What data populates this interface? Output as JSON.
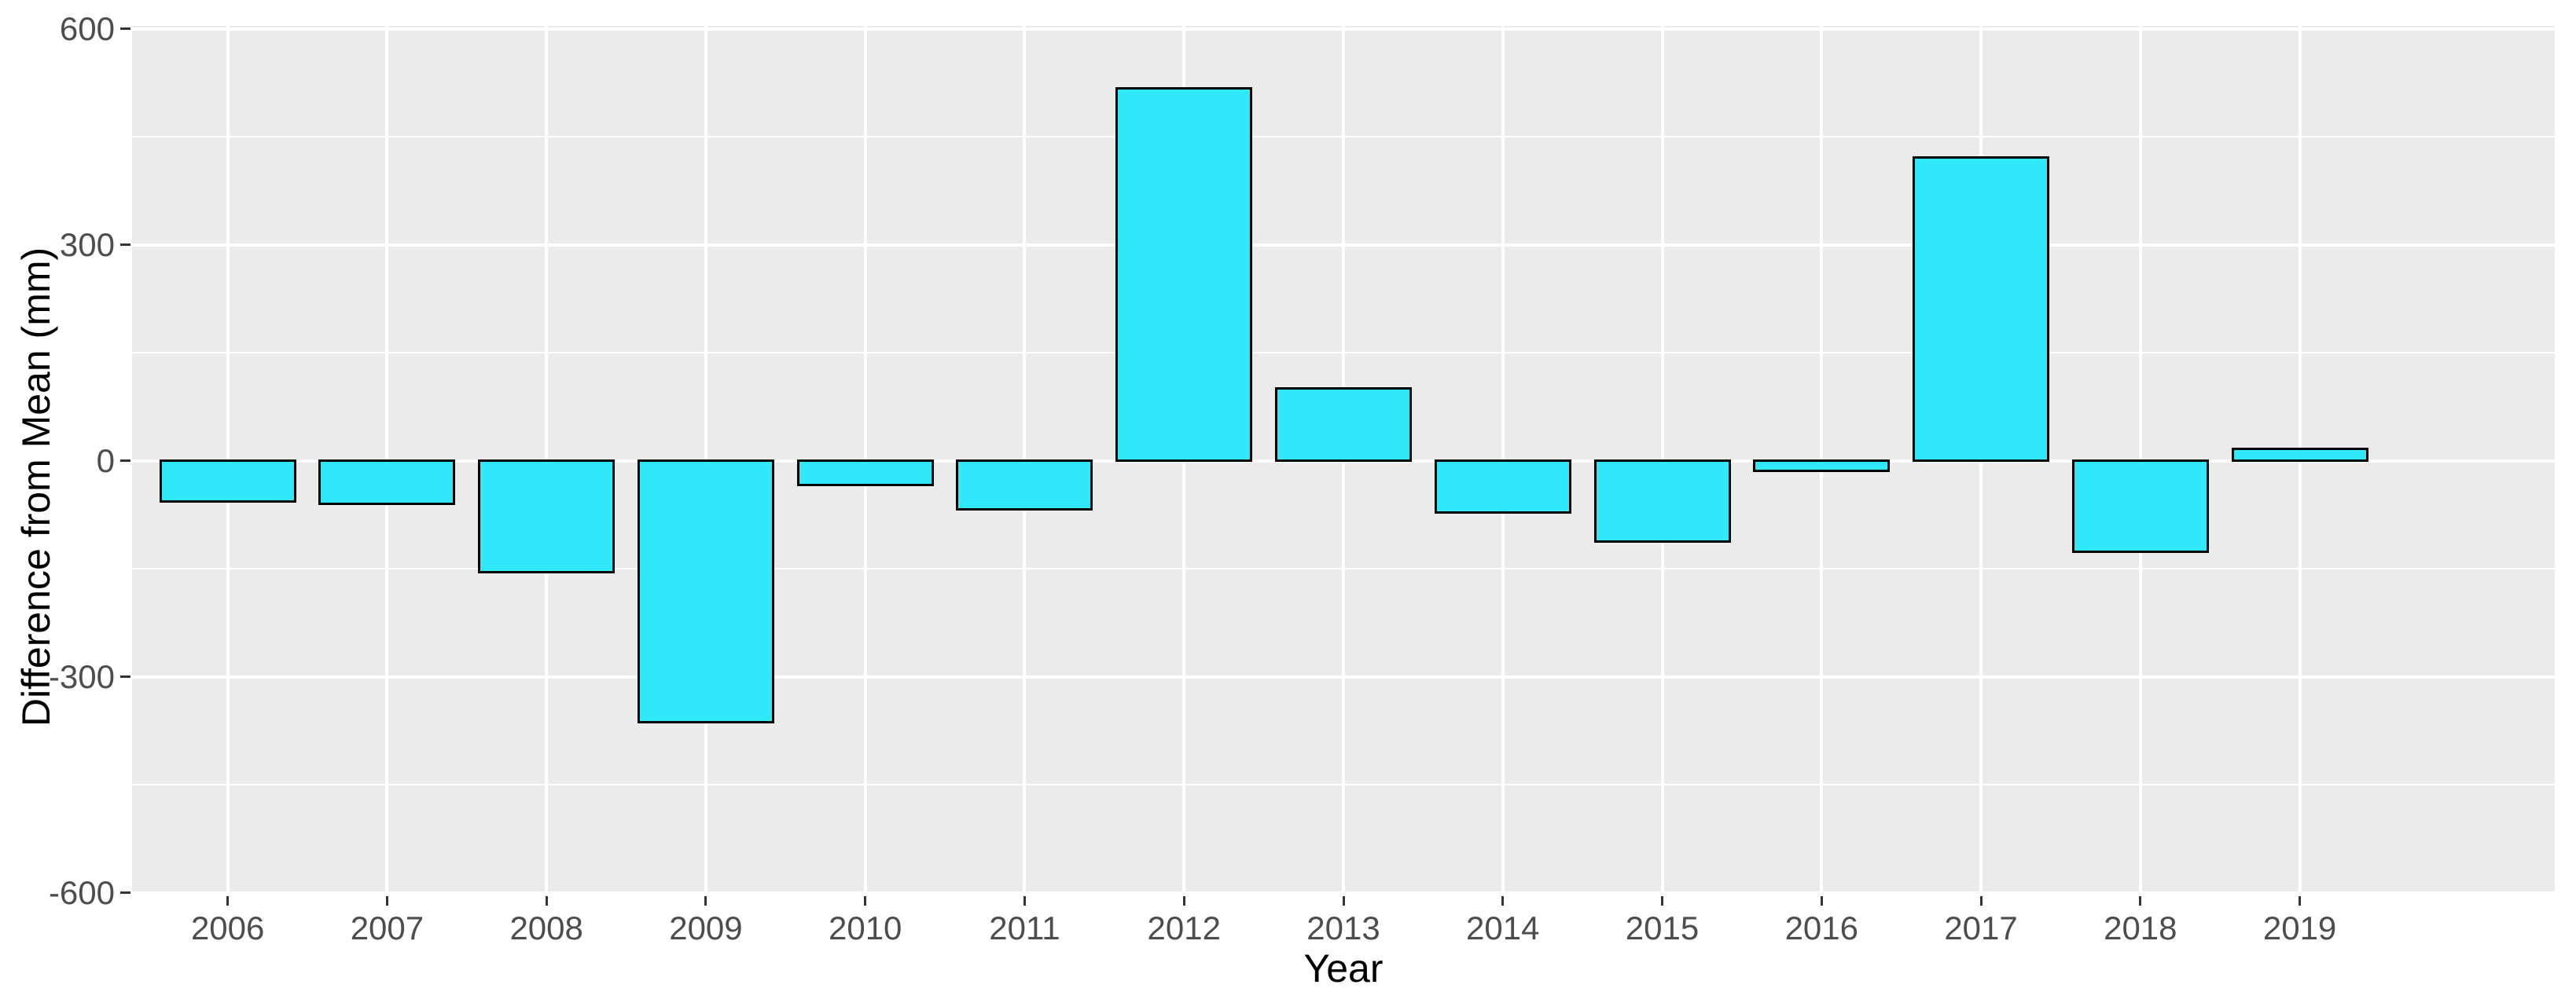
{
  "chart_data": {
    "type": "bar",
    "title": "",
    "xlabel": "Year",
    "ylabel": "Difference from Mean (mm)",
    "categories": [
      "2006",
      "2007",
      "2008",
      "2009",
      "2010",
      "2011",
      "2012",
      "2013",
      "2014",
      "2015",
      "2016",
      "2017",
      "2018",
      "2019"
    ],
    "values": [
      -57,
      -60,
      -155,
      -363,
      -34,
      -68,
      517,
      100,
      -72,
      -112,
      -14,
      421,
      -126,
      16
    ],
    "ylim": [
      -600,
      600
    ],
    "yticks_major": [
      600,
      300,
      0,
      -300,
      -600
    ],
    "yticks_minor": [
      450,
      150,
      -150,
      -450
    ],
    "grid": true,
    "legend_position": "none",
    "colors": {
      "bar_fill": "#30E8FA",
      "bar_border": "#000000",
      "panel_background": "#EBEBEB",
      "gridline": "#FFFFFF",
      "tick_label": "#4D4D4D",
      "axis_title": "#000000",
      "tick_mark": "#333333",
      "figure_background": "#FFFFFF"
    }
  }
}
